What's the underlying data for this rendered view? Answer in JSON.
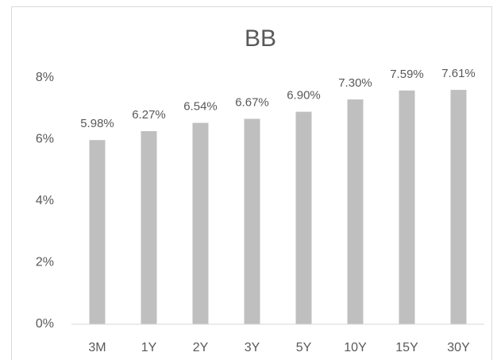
{
  "chart_data": {
    "type": "bar",
    "title": "BB",
    "categories": [
      "3M",
      "1Y",
      "2Y",
      "3Y",
      "5Y",
      "10Y",
      "15Y",
      "30Y"
    ],
    "values": [
      5.98,
      6.27,
      6.54,
      6.67,
      6.9,
      7.3,
      7.59,
      7.61
    ],
    "value_labels": [
      "5.98%",
      "6.27%",
      "6.54%",
      "6.67%",
      "6.90%",
      "7.30%",
      "7.59%",
      "7.61%"
    ],
    "color": "#bfbfbf",
    "ylim": [
      0,
      8
    ],
    "yticks": [
      {
        "value": 0,
        "label": "0%"
      },
      {
        "value": 2,
        "label": "2%"
      },
      {
        "value": 4,
        "label": "4%"
      },
      {
        "value": 6,
        "label": "6%"
      },
      {
        "value": 8,
        "label": "8%"
      }
    ],
    "grid": false
  }
}
